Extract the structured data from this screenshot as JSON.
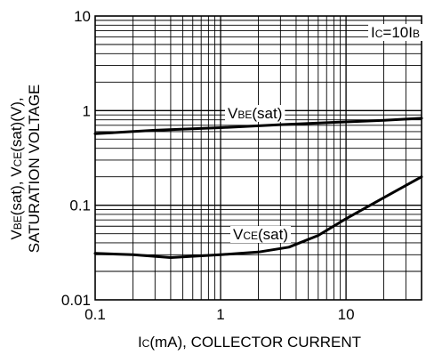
{
  "chart_data": {
    "type": "line",
    "x_scale": "log",
    "y_scale": "log",
    "xlim": [
      0.1,
      40
    ],
    "ylim": [
      0.01,
      10
    ],
    "grid": true,
    "x_ticks": [
      {
        "value": 0.1,
        "label": "0.1"
      },
      {
        "value": 1,
        "label": "1"
      },
      {
        "value": 10,
        "label": "10"
      }
    ],
    "y_ticks": [
      {
        "value": 10,
        "label": "10"
      },
      {
        "value": 1,
        "label": "1"
      },
      {
        "value": 0.1,
        "label": "0.1"
      },
      {
        "value": 0.01,
        "label": "0.01"
      }
    ],
    "xlabel": {
      "main": "I",
      "sub": "C",
      "rest": "(mA), COLLECTOR CURRENT"
    },
    "ylabel": {
      "line1": [
        {
          "t": "V",
          "sub": false
        },
        {
          "t": "BE",
          "sub": true
        },
        {
          "t": "(sat),  V",
          "sub": false
        },
        {
          "t": "CE",
          "sub": true
        },
        {
          "t": "(sat)(V),",
          "sub": false
        }
      ],
      "line2": "SATURATION VOLTAGE"
    },
    "condition": {
      "main1": "I",
      "sub1": "C",
      "mid": "=10I",
      "sub2": "B"
    },
    "series": [
      {
        "name": "VBE(sat)",
        "label": {
          "main": "V",
          "sub": "BE",
          "rest": "(sat)"
        },
        "x": [
          0.1,
          0.3,
          1,
          3,
          10,
          20,
          40
        ],
        "y": [
          0.57,
          0.62,
          0.66,
          0.71,
          0.76,
          0.79,
          0.83
        ]
      },
      {
        "name": "VCE(sat)",
        "label": {
          "main": "V",
          "sub": "CE",
          "rest": "(sat)"
        },
        "x": [
          0.1,
          0.2,
          0.4,
          1,
          2,
          3.5,
          6,
          10,
          20,
          40
        ],
        "y": [
          0.031,
          0.03,
          0.028,
          0.03,
          0.032,
          0.036,
          0.048,
          0.072,
          0.12,
          0.2
        ]
      }
    ]
  }
}
